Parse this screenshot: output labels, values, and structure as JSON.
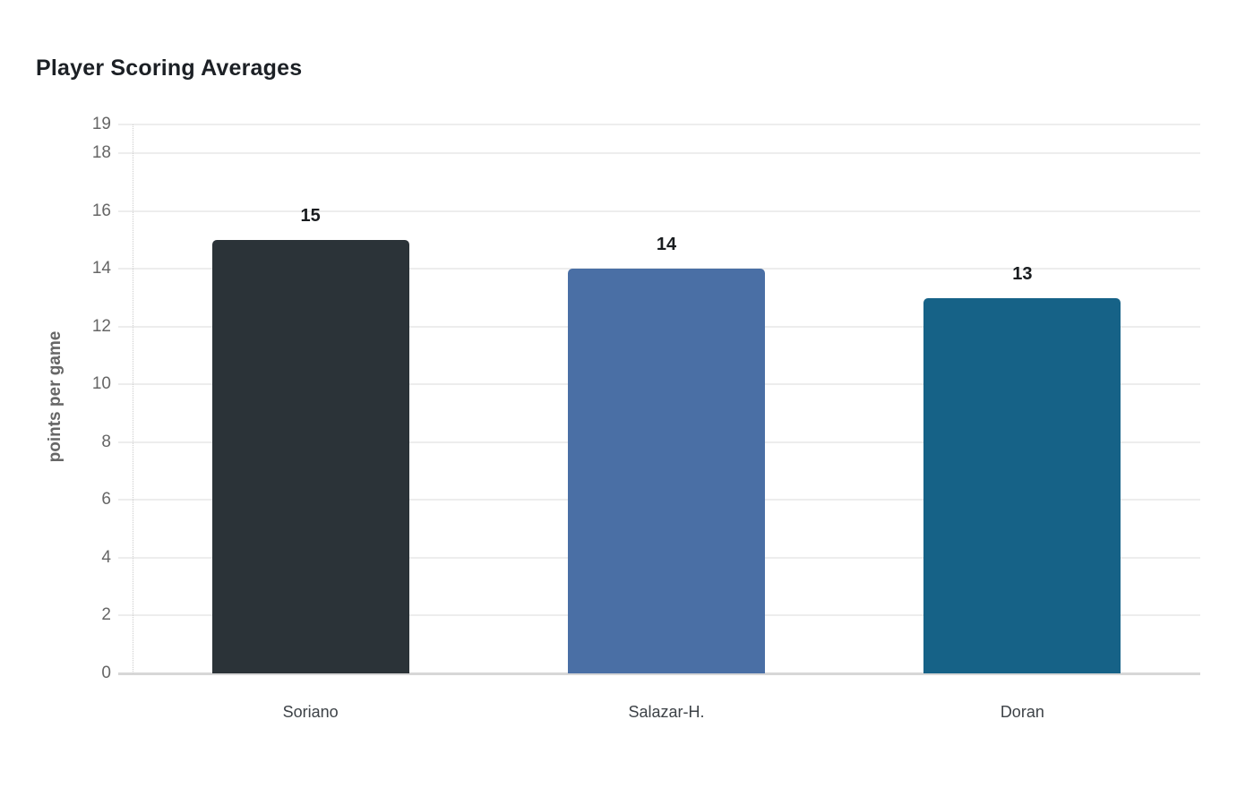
{
  "page": {
    "background": "#ffffff"
  },
  "chart_data": {
    "type": "bar",
    "title": "Player Scoring Averages",
    "categories": [
      "Soriano",
      "Salazar-H.",
      "Doran"
    ],
    "values": [
      15,
      14,
      13
    ],
    "value_labels": [
      "15",
      "14",
      "13"
    ],
    "bar_colors": [
      "#2b3338",
      "#4a6fa5",
      "#166287"
    ],
    "xlabel": "",
    "ylabel": "points per game",
    "ylim": [
      0,
      19
    ],
    "yticks": [
      0,
      2,
      4,
      6,
      8,
      10,
      12,
      14,
      16,
      18,
      19
    ],
    "grid": true,
    "legend": false,
    "colors": {
      "title": "#1c2025",
      "tick_label": "#666666",
      "axis_label": "#666666",
      "category_label": "#3d4247",
      "value_label": "#191c1f",
      "gridline": "#ededed",
      "baseline": "#d7d7d7",
      "axis_line": "#cccccc"
    }
  }
}
